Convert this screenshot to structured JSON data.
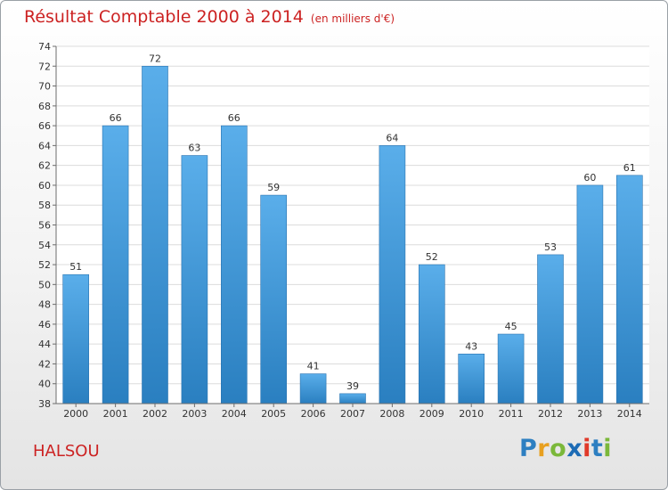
{
  "header": {
    "title": "Résultat Comptable 2000 à 2014",
    "subtitle": "(en milliers d'€)"
  },
  "footer": {
    "commune": "HALSOU"
  },
  "logo": {
    "letters": [
      {
        "char": "P",
        "color": "#2d7fc1"
      },
      {
        "char": "r",
        "color": "#e8a020"
      },
      {
        "char": "o",
        "color": "#7bb83a"
      },
      {
        "char": "x",
        "color": "#1c6bb5"
      },
      {
        "char": "i",
        "color": "#e03a2a"
      },
      {
        "char": "t",
        "color": "#2d7fc1"
      },
      {
        "char": "i",
        "color": "#7bb83a"
      }
    ]
  },
  "chart_data": {
    "type": "bar",
    "title": "Résultat Comptable 2000 à 2014",
    "subtitle": "(en milliers d'€)",
    "categories": [
      "2000",
      "2001",
      "2002",
      "2003",
      "2004",
      "2005",
      "2006",
      "2007",
      "2008",
      "2009",
      "2010",
      "2011",
      "2012",
      "2013",
      "2014"
    ],
    "values": [
      51,
      66,
      72,
      63,
      66,
      59,
      41,
      39,
      64,
      52,
      43,
      45,
      53,
      60,
      61
    ],
    "ylim": [
      38,
      74
    ],
    "ytick_step": 2,
    "grid": true,
    "legend": false,
    "bar_color_top": "#5aaeea",
    "bar_color_bottom": "#2a7fc0"
  }
}
